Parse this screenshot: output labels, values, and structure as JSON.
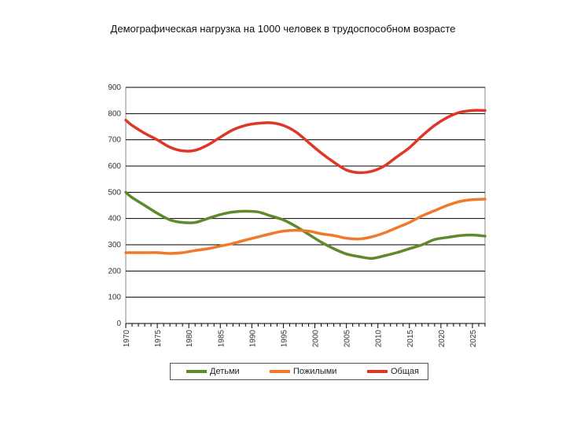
{
  "chart_data": {
    "type": "line",
    "title": "Демографическая нагрузка на 1000 человек в трудоспособном возрасте",
    "xlabel": "",
    "ylabel": "",
    "ylim": [
      0,
      900
    ],
    "xlim": [
      1970,
      2027
    ],
    "y_ticks": [
      "0",
      "100",
      "200",
      "300",
      "400",
      "500",
      "600",
      "700",
      "800",
      "900"
    ],
    "x_tick_labels": [
      "1970",
      "1975",
      "1980",
      "1985",
      "1990",
      "1995",
      "2000",
      "2005",
      "2010",
      "2015",
      "2020",
      "2025"
    ],
    "grid": true,
    "legend_position": "bottom",
    "series": [
      {
        "name": "Детьми",
        "color": "#5e8a2c",
        "x": [
          1970,
          1971,
          1973,
          1975,
          1977,
          1979,
          1981,
          1983,
          1985,
          1987,
          1989,
          1991,
          1993,
          1995,
          1997,
          1999,
          2001,
          2003,
          2005,
          2007,
          2009,
          2011,
          2013,
          2015,
          2017,
          2019,
          2021,
          2023,
          2025,
          2027
        ],
        "values": [
          500,
          480,
          450,
          420,
          395,
          385,
          385,
          400,
          415,
          425,
          428,
          425,
          410,
          395,
          370,
          340,
          310,
          285,
          265,
          255,
          248,
          258,
          270,
          285,
          300,
          320,
          328,
          335,
          337,
          333
        ]
      },
      {
        "name": "Пожилыми",
        "color": "#f07a2a",
        "x": [
          1970,
          1973,
          1975,
          1977,
          1979,
          1981,
          1983,
          1985,
          1987,
          1989,
          1991,
          1993,
          1995,
          1997,
          1999,
          2001,
          2003,
          2005,
          2007,
          2009,
          2011,
          2013,
          2015,
          2017,
          2019,
          2021,
          2023,
          2025,
          2027
        ],
        "values": [
          270,
          270,
          270,
          267,
          270,
          278,
          285,
          295,
          305,
          318,
          330,
          342,
          352,
          355,
          352,
          342,
          335,
          325,
          322,
          330,
          345,
          365,
          385,
          410,
          430,
          450,
          465,
          472,
          474
        ]
      },
      {
        "name": "Общая",
        "color": "#e03628",
        "x": [
          1970,
          1971,
          1973,
          1975,
          1977,
          1979,
          1981,
          1983,
          1985,
          1987,
          1989,
          1991,
          1993,
          1995,
          1997,
          1999,
          2001,
          2003,
          2005,
          2007,
          2009,
          2011,
          2013,
          2015,
          2017,
          2019,
          2021,
          2023,
          2025,
          2027
        ],
        "values": [
          775,
          755,
          725,
          700,
          672,
          658,
          660,
          680,
          710,
          738,
          755,
          763,
          765,
          755,
          730,
          690,
          650,
          615,
          585,
          575,
          580,
          600,
          635,
          670,
          715,
          755,
          785,
          805,
          812,
          812
        ]
      }
    ]
  }
}
